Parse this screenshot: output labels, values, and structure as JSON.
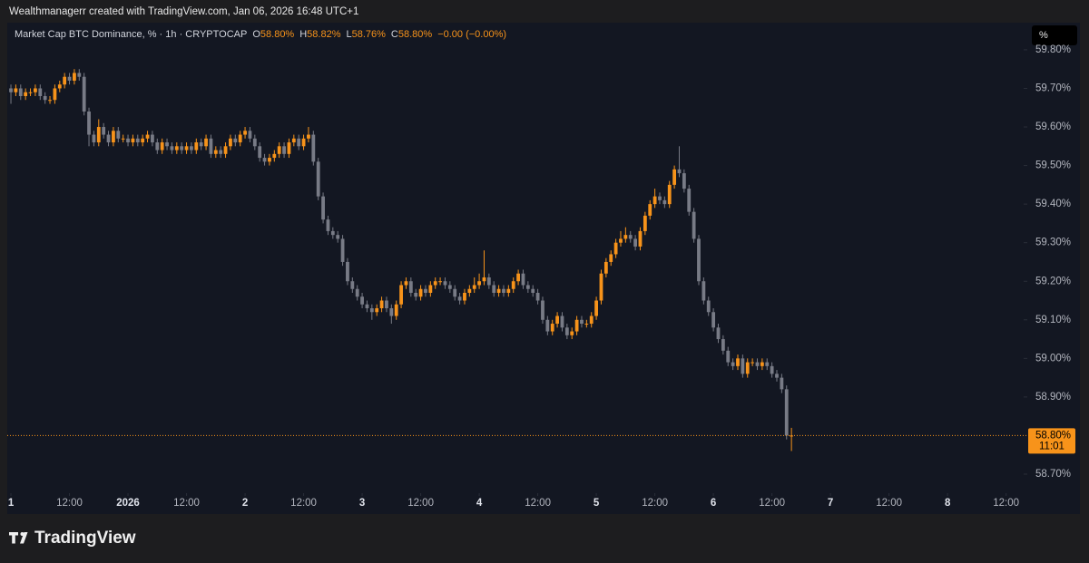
{
  "header": "Wealthmanagerr created with TradingView.com, Jan 06, 2026 16:48 UTC+1",
  "brand": "TradingView",
  "chart_data": {
    "type": "candlestick",
    "symbol": "Market Cap BTC Dominance, % · 1h · CRYPTOCAP",
    "legend": [
      {
        "key": "O",
        "text": "58.80%"
      },
      {
        "key": "H",
        "text": "58.82%"
      },
      {
        "key": "L",
        "text": "58.76%"
      },
      {
        "key": "C",
        "text": "58.80%"
      }
    ],
    "change": "−0.00 (−0.00%)",
    "scale_button": "%",
    "up_color": "#f7931a",
    "down_color": "#787b86",
    "open": [
      59.7,
      59.69,
      59.7,
      59.68,
      59.69,
      59.69,
      59.7,
      59.68,
      59.67,
      59.67,
      59.7,
      59.71,
      59.73,
      59.72,
      59.74,
      59.73,
      59.64,
      59.58,
      59.56,
      59.6,
      59.58,
      59.56,
      59.59,
      59.57,
      59.57,
      59.56,
      59.57,
      59.56,
      59.57,
      59.58,
      59.56,
      59.54,
      59.56,
      59.55,
      59.54,
      59.55,
      59.54,
      59.55,
      59.54,
      59.56,
      59.55,
      59.57,
      59.53,
      59.54,
      59.53,
      59.55,
      59.57,
      59.56,
      59.58,
      59.59,
      59.57,
      59.55,
      59.52,
      59.51,
      59.52,
      59.53,
      59.55,
      59.53,
      59.56,
      59.57,
      59.55,
      59.57,
      59.58,
      59.51,
      59.42,
      59.36,
      59.33,
      59.32,
      59.31,
      59.25,
      59.2,
      59.18,
      59.16,
      59.14,
      59.13,
      59.12,
      59.13,
      59.15,
      59.13,
      59.11,
      59.14,
      59.19,
      59.2,
      59.17,
      59.16,
      59.18,
      59.17,
      59.19,
      59.2,
      59.2,
      59.19,
      59.18,
      59.16,
      59.15,
      59.17,
      59.18,
      59.19,
      59.2,
      59.21,
      59.19,
      59.17,
      59.18,
      59.17,
      59.18,
      59.2,
      59.22,
      59.19,
      59.18,
      59.17,
      59.15,
      59.1,
      59.07,
      59.09,
      59.11,
      59.08,
      59.06,
      59.07,
      59.1,
      59.09,
      59.09,
      59.11,
      59.15,
      59.22,
      59.25,
      59.27,
      59.3,
      59.31,
      59.32,
      59.31,
      59.29,
      59.33,
      59.37,
      59.4,
      59.42,
      59.41,
      59.4,
      59.45,
      59.49,
      59.48,
      59.44,
      59.38,
      59.31,
      59.2,
      59.15,
      59.12,
      59.08,
      59.05,
      59.02,
      58.99,
      58.98,
      59.0,
      58.96,
      58.99,
      58.99,
      58.98,
      58.99,
      58.98,
      58.96,
      58.95,
      58.92,
      58.8
    ],
    "high": [
      59.71,
      59.71,
      59.71,
      59.7,
      59.7,
      59.71,
      59.71,
      59.69,
      59.68,
      59.71,
      59.72,
      59.74,
      59.74,
      59.75,
      59.75,
      59.74,
      59.65,
      59.59,
      59.62,
      59.61,
      59.59,
      59.6,
      59.6,
      59.58,
      59.58,
      59.58,
      59.58,
      59.58,
      59.59,
      59.59,
      59.57,
      59.57,
      59.57,
      59.56,
      59.56,
      59.56,
      59.56,
      59.56,
      59.57,
      59.57,
      59.58,
      59.58,
      59.55,
      59.55,
      59.56,
      59.58,
      59.58,
      59.59,
      59.6,
      59.6,
      59.58,
      59.56,
      59.53,
      59.53,
      59.54,
      59.56,
      59.56,
      59.57,
      59.58,
      59.58,
      59.58,
      59.6,
      59.59,
      59.52,
      59.43,
      59.37,
      59.34,
      59.33,
      59.32,
      59.26,
      59.21,
      59.19,
      59.17,
      59.15,
      59.14,
      59.14,
      59.16,
      59.16,
      59.14,
      59.15,
      59.2,
      59.21,
      59.21,
      59.18,
      59.19,
      59.19,
      59.2,
      59.21,
      59.21,
      59.21,
      59.2,
      59.19,
      59.17,
      59.18,
      59.19,
      59.21,
      59.22,
      59.28,
      59.22,
      59.2,
      59.19,
      59.19,
      59.19,
      59.21,
      59.23,
      59.23,
      59.2,
      59.19,
      59.18,
      59.16,
      59.11,
      59.1,
      59.12,
      59.12,
      59.09,
      59.08,
      59.11,
      59.11,
      59.1,
      59.12,
      59.16,
      59.23,
      59.26,
      59.28,
      59.31,
      59.33,
      59.34,
      59.33,
      59.32,
      59.34,
      59.38,
      59.41,
      59.44,
      59.43,
      59.42,
      59.46,
      59.5,
      59.55,
      59.49,
      59.45,
      59.39,
      59.32,
      59.21,
      59.16,
      59.13,
      59.09,
      59.06,
      59.03,
      59.0,
      59.01,
      59.01,
      59.0,
      59.0,
      59.0,
      59.0,
      59.0,
      58.99,
      58.97,
      58.96,
      58.93,
      58.82
    ],
    "low": [
      59.66,
      59.68,
      59.67,
      59.67,
      59.68,
      59.68,
      59.67,
      59.66,
      59.66,
      59.66,
      59.69,
      59.7,
      59.71,
      59.71,
      59.72,
      59.63,
      59.55,
      59.55,
      59.55,
      59.57,
      59.55,
      59.55,
      59.56,
      59.56,
      59.55,
      59.55,
      59.55,
      59.55,
      59.56,
      59.55,
      59.53,
      59.53,
      59.54,
      59.53,
      59.53,
      59.53,
      59.53,
      59.53,
      59.53,
      59.54,
      59.54,
      59.52,
      59.52,
      59.52,
      59.52,
      59.54,
      59.55,
      59.55,
      59.57,
      59.56,
      59.54,
      59.51,
      59.5,
      59.5,
      59.51,
      59.52,
      59.52,
      59.52,
      59.55,
      59.54,
      59.54,
      59.56,
      59.5,
      59.41,
      59.35,
      59.32,
      59.31,
      59.3,
      59.24,
      59.19,
      59.17,
      59.15,
      59.13,
      59.12,
      59.1,
      59.11,
      59.12,
      59.12,
      59.09,
      59.1,
      59.13,
      59.18,
      59.16,
      59.15,
      59.15,
      59.16,
      59.16,
      59.18,
      59.19,
      59.18,
      59.17,
      59.15,
      59.14,
      59.14,
      59.16,
      59.17,
      59.18,
      59.19,
      59.18,
      59.16,
      59.16,
      59.16,
      59.16,
      59.17,
      59.19,
      59.18,
      59.17,
      59.16,
      59.14,
      59.09,
      59.06,
      59.06,
      59.08,
      59.07,
      59.05,
      59.05,
      59.06,
      59.08,
      59.08,
      59.08,
      59.1,
      59.14,
      59.21,
      59.24,
      59.26,
      59.29,
      59.3,
      59.3,
      59.28,
      59.28,
      59.32,
      59.36,
      59.39,
      59.4,
      59.39,
      59.39,
      59.44,
      59.47,
      59.43,
      59.37,
      59.3,
      59.19,
      59.14,
      59.11,
      59.07,
      59.04,
      59.01,
      58.98,
      58.97,
      58.97,
      58.95,
      58.95,
      58.98,
      58.97,
      58.97,
      58.97,
      58.95,
      58.94,
      58.91,
      58.79,
      58.76
    ],
    "close": [
      59.69,
      59.7,
      59.68,
      59.69,
      59.69,
      59.7,
      59.68,
      59.67,
      59.67,
      59.7,
      59.71,
      59.73,
      59.72,
      59.74,
      59.73,
      59.64,
      59.58,
      59.56,
      59.6,
      59.58,
      59.56,
      59.59,
      59.57,
      59.57,
      59.56,
      59.57,
      59.56,
      59.57,
      59.58,
      59.56,
      59.54,
      59.56,
      59.55,
      59.54,
      59.55,
      59.54,
      59.55,
      59.54,
      59.56,
      59.55,
      59.57,
      59.53,
      59.54,
      59.53,
      59.55,
      59.57,
      59.56,
      59.58,
      59.59,
      59.57,
      59.55,
      59.52,
      59.51,
      59.52,
      59.53,
      59.55,
      59.53,
      59.56,
      59.57,
      59.55,
      59.57,
      59.58,
      59.51,
      59.42,
      59.36,
      59.33,
      59.32,
      59.31,
      59.25,
      59.2,
      59.18,
      59.16,
      59.14,
      59.13,
      59.12,
      59.13,
      59.15,
      59.13,
      59.11,
      59.14,
      59.19,
      59.2,
      59.17,
      59.16,
      59.18,
      59.17,
      59.19,
      59.2,
      59.2,
      59.19,
      59.18,
      59.16,
      59.15,
      59.17,
      59.18,
      59.19,
      59.2,
      59.21,
      59.19,
      59.17,
      59.18,
      59.17,
      59.18,
      59.2,
      59.22,
      59.19,
      59.18,
      59.17,
      59.15,
      59.1,
      59.07,
      59.09,
      59.11,
      59.08,
      59.06,
      59.07,
      59.1,
      59.09,
      59.09,
      59.11,
      59.15,
      59.22,
      59.25,
      59.27,
      59.3,
      59.31,
      59.32,
      59.31,
      59.29,
      59.33,
      59.37,
      59.4,
      59.42,
      59.41,
      59.4,
      59.45,
      59.49,
      59.48,
      59.44,
      59.38,
      59.31,
      59.2,
      59.15,
      59.12,
      59.08,
      59.05,
      59.02,
      58.99,
      58.98,
      59.0,
      58.96,
      58.99,
      58.99,
      58.98,
      58.99,
      58.98,
      58.96,
      58.95,
      58.92,
      58.8,
      58.8
    ],
    "xlim": [
      -0.75,
      207.6
    ],
    "ylim": [
      58.66,
      59.868
    ],
    "xticks": [
      {
        "value": 0,
        "label": "1"
      },
      {
        "value": 12,
        "label": "12:00"
      },
      {
        "value": 24,
        "label": "2026"
      },
      {
        "value": 36,
        "label": "12:00"
      },
      {
        "value": 48,
        "label": "2"
      },
      {
        "value": 60,
        "label": "12:00"
      },
      {
        "value": 72,
        "label": "3"
      },
      {
        "value": 84,
        "label": "12:00"
      },
      {
        "value": 96,
        "label": "4"
      },
      {
        "value": 108,
        "label": "12:00"
      },
      {
        "value": 120,
        "label": "5"
      },
      {
        "value": 132,
        "label": "12:00"
      },
      {
        "value": 144,
        "label": "6"
      },
      {
        "value": 156,
        "label": "12:00"
      },
      {
        "value": 168,
        "label": "7"
      },
      {
        "value": 180,
        "label": "12:00"
      },
      {
        "value": 192,
        "label": "8"
      },
      {
        "value": 204,
        "label": "12:00"
      }
    ],
    "yticks": [
      {
        "value": 59.8,
        "label": "59.80%"
      },
      {
        "value": 59.7,
        "label": "59.70%"
      },
      {
        "value": 59.6,
        "label": "59.60%"
      },
      {
        "value": 59.5,
        "label": "59.50%"
      },
      {
        "value": 59.4,
        "label": "59.40%"
      },
      {
        "value": 59.3,
        "label": "59.30%"
      },
      {
        "value": 59.2,
        "label": "59.20%"
      },
      {
        "value": 59.1,
        "label": "59.10%"
      },
      {
        "value": 59.0,
        "label": "59.00%"
      },
      {
        "value": 58.9,
        "label": "58.90%"
      },
      {
        "value": 58.7,
        "label": "58.70%"
      }
    ],
    "last_price": {
      "value": 58.8,
      "label": "58.80%"
    },
    "countdown": "11:01"
  }
}
